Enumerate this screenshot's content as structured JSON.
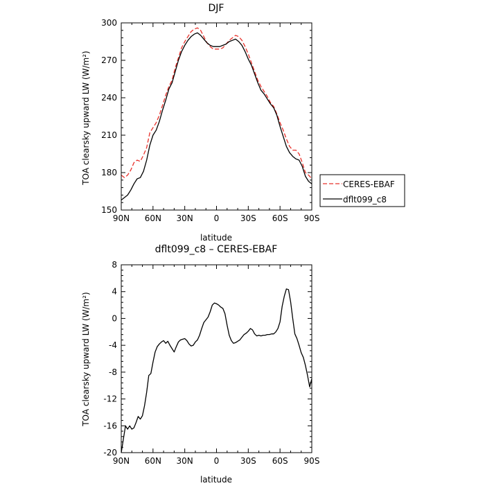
{
  "chart_data": [
    {
      "type": "line",
      "title": "DJF",
      "xlabel": "latitude",
      "ylabel": "TOA clearsky upward LW (W/m²)",
      "xlim": [
        90,
        -90
      ],
      "ylim": [
        150,
        300
      ],
      "x_ticks": [
        90,
        60,
        30,
        0,
        -30,
        -60,
        -90
      ],
      "x_tick_labels": [
        "90N",
        "60N",
        "30N",
        "0",
        "30S",
        "60S",
        "90S"
      ],
      "y_ticks": [
        150,
        180,
        210,
        240,
        270,
        300
      ],
      "y_tick_labels": [
        "150",
        "180",
        "210",
        "240",
        "270",
        "300"
      ],
      "grid": false,
      "legend": "right",
      "series": [
        {
          "name": "CERES-EBAF",
          "color": "#e8302a",
          "dash": "dashed",
          "x": [
            90,
            87,
            84,
            81,
            78,
            75,
            72,
            69,
            66,
            63,
            60,
            57,
            54,
            51,
            48,
            45,
            42,
            39,
            36,
            33,
            30,
            27,
            24,
            21,
            18,
            15,
            12,
            9,
            6,
            3,
            0,
            -3,
            -6,
            -9,
            -12,
            -15,
            -18,
            -21,
            -24,
            -27,
            -30,
            -33,
            -36,
            -39,
            -42,
            -45,
            -48,
            -51,
            -54,
            -57,
            -60,
            -63,
            -66,
            -69,
            -72,
            -75,
            -78,
            -81,
            -84,
            -87,
            -90
          ],
          "y": [
            178,
            176,
            178,
            182,
            188,
            190,
            189,
            194,
            200,
            212,
            216,
            220,
            226,
            234,
            242,
            249,
            254,
            264,
            272,
            280,
            285,
            289,
            293,
            295,
            296,
            294,
            289,
            284,
            281,
            279,
            279,
            279,
            280,
            283,
            286,
            288,
            290,
            289,
            286,
            281,
            275,
            268,
            261,
            254,
            249,
            245,
            241,
            236,
            233,
            227,
            220,
            214,
            207,
            201,
            198,
            198,
            195,
            188,
            180,
            178,
            175
          ]
        },
        {
          "name": "dflt099_c8",
          "color": "#000000",
          "dash": "solid",
          "x": [
            90,
            87,
            84,
            81,
            78,
            75,
            72,
            69,
            66,
            63,
            60,
            57,
            54,
            51,
            48,
            45,
            42,
            39,
            36,
            33,
            30,
            27,
            24,
            21,
            18,
            15,
            12,
            9,
            6,
            3,
            0,
            -3,
            -6,
            -9,
            -12,
            -15,
            -18,
            -21,
            -24,
            -27,
            -30,
            -33,
            -36,
            -39,
            -42,
            -45,
            -48,
            -51,
            -54,
            -57,
            -60,
            -63,
            -66,
            -69,
            -72,
            -75,
            -78,
            -81,
            -84,
            -87,
            -90
          ],
          "y": [
            158,
            160,
            162,
            166,
            171,
            175,
            176,
            181,
            190,
            202,
            210,
            214,
            221,
            230,
            238,
            247,
            252,
            261,
            270,
            277,
            282,
            286,
            289,
            291,
            292,
            290,
            287,
            284,
            282,
            281,
            281,
            281,
            282,
            283,
            285,
            286,
            287,
            285,
            282,
            277,
            271,
            266,
            259,
            252,
            246,
            243,
            239,
            235,
            232,
            226,
            217,
            209,
            201,
            196,
            193,
            191,
            190,
            185,
            177,
            173,
            171
          ]
        }
      ]
    },
    {
      "type": "line",
      "title": "dflt099_c8 – CERES-EBAF",
      "xlabel": "latitude",
      "ylabel": "TOA clearsky upward LW (W/m²)",
      "xlim": [
        90,
        -90
      ],
      "ylim": [
        -20,
        8
      ],
      "x_ticks": [
        90,
        60,
        30,
        0,
        -30,
        -60,
        -90
      ],
      "x_tick_labels": [
        "90N",
        "60N",
        "30N",
        "0",
        "30S",
        "60S",
        "90S"
      ],
      "y_ticks": [
        -20,
        -16,
        -12,
        -8,
        -4,
        0,
        4,
        8
      ],
      "y_tick_labels": [
        "-20",
        "-16",
        "-12",
        "-8",
        "-4",
        "0",
        "4",
        "8"
      ],
      "grid": false,
      "series": [
        {
          "name": "",
          "color": "#000000",
          "dash": "solid",
          "x": [
            90,
            88,
            86,
            84,
            82,
            80,
            78,
            76,
            74,
            72,
            70,
            68,
            66,
            64,
            62,
            60,
            58,
            56,
            54,
            52,
            50,
            48,
            46,
            44,
            42,
            40,
            38,
            36,
            34,
            32,
            30,
            28,
            26,
            24,
            22,
            20,
            18,
            16,
            14,
            12,
            10,
            8,
            6,
            4,
            2,
            0,
            -2,
            -4,
            -6,
            -8,
            -10,
            -12,
            -14,
            -16,
            -18,
            -20,
            -22,
            -24,
            -26,
            -28,
            -30,
            -32,
            -34,
            -36,
            -38,
            -40,
            -42,
            -44,
            -46,
            -48,
            -50,
            -52,
            -54,
            -56,
            -58,
            -60,
            -62,
            -64,
            -66,
            -68,
            -70,
            -72,
            -74,
            -76,
            -78,
            -80,
            -82,
            -84,
            -86,
            -88,
            -90
          ],
          "y": [
            -20,
            -18,
            -16,
            -16.5,
            -16,
            -16.5,
            -16.3,
            -15.5,
            -14.6,
            -15,
            -14.5,
            -13,
            -11,
            -8.5,
            -8.2,
            -6.5,
            -5,
            -4.2,
            -3.8,
            -3.5,
            -3.3,
            -3.7,
            -3.4,
            -4,
            -4.5,
            -5,
            -4.2,
            -3.5,
            -3.2,
            -3.1,
            -3,
            -3.3,
            -3.8,
            -4.1,
            -4,
            -3.5,
            -3.2,
            -2.5,
            -1.5,
            -0.6,
            -0.2,
            0.2,
            1,
            2,
            2.3,
            2.2,
            2,
            1.7,
            1.5,
            0.7,
            -1,
            -2.5,
            -3.3,
            -3.7,
            -3.6,
            -3.4,
            -3.2,
            -2.8,
            -2.4,
            -2.2,
            -1.9,
            -1.5,
            -1.7,
            -2.3,
            -2.6,
            -2.5,
            -2.6,
            -2.5,
            -2.5,
            -2.4,
            -2.4,
            -2.3,
            -2.3,
            -2,
            -1.5,
            -0.5,
            1.8,
            3.3,
            4.4,
            4.3,
            2.5,
            0,
            -2.3,
            -3,
            -4,
            -5.1,
            -5.8,
            -7,
            -8.5,
            -10.2,
            -9
          ]
        }
      ]
    }
  ]
}
